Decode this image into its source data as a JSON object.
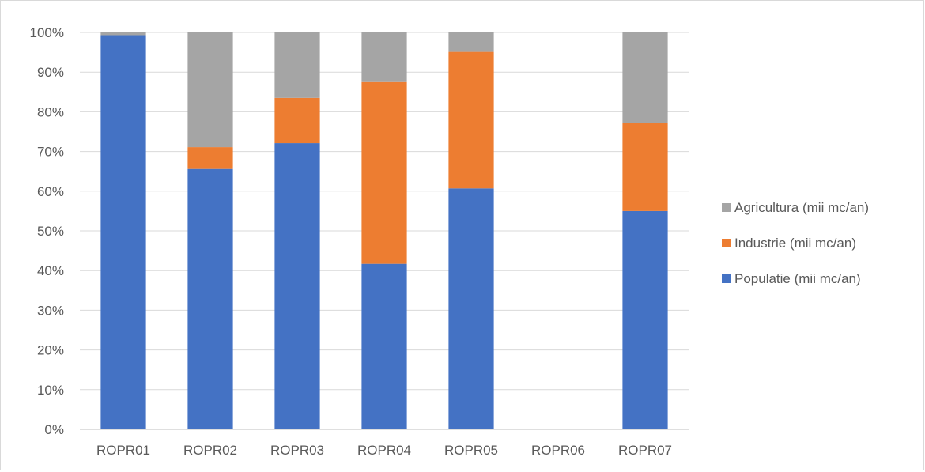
{
  "chart_data": {
    "type": "bar",
    "stacked": "percent",
    "categories": [
      "ROPR01",
      "ROPR02",
      "ROPR03",
      "ROPR04",
      "ROPR05",
      "ROPR06",
      "ROPR07"
    ],
    "series": [
      {
        "name": "Populatie (mii mc/an)",
        "color": "#4472C4",
        "values": [
          99.3,
          65.6,
          72.1,
          41.7,
          60.7,
          0,
          55.0
        ]
      },
      {
        "name": "Industrie (mii mc/an)",
        "color": "#ED7D31",
        "values": [
          0,
          5.5,
          11.4,
          45.8,
          34.4,
          0,
          22.2
        ]
      },
      {
        "name": "Agricultura (mii mc/an)",
        "color": "#A5A5A5",
        "values": [
          0.7,
          28.9,
          16.5,
          12.5,
          4.9,
          0,
          22.8
        ]
      }
    ],
    "yticks": [
      "0%",
      "10%",
      "20%",
      "30%",
      "40%",
      "50%",
      "60%",
      "70%",
      "80%",
      "90%",
      "100%"
    ],
    "ylim": [
      0,
      100
    ],
    "grid": true,
    "legend_position": "right",
    "legend_order": [
      "Agricultura (mii mc/an)",
      "Industrie (mii mc/an)",
      "Populatie (mii mc/an)"
    ],
    "title": "",
    "xlabel": "",
    "ylabel": ""
  }
}
